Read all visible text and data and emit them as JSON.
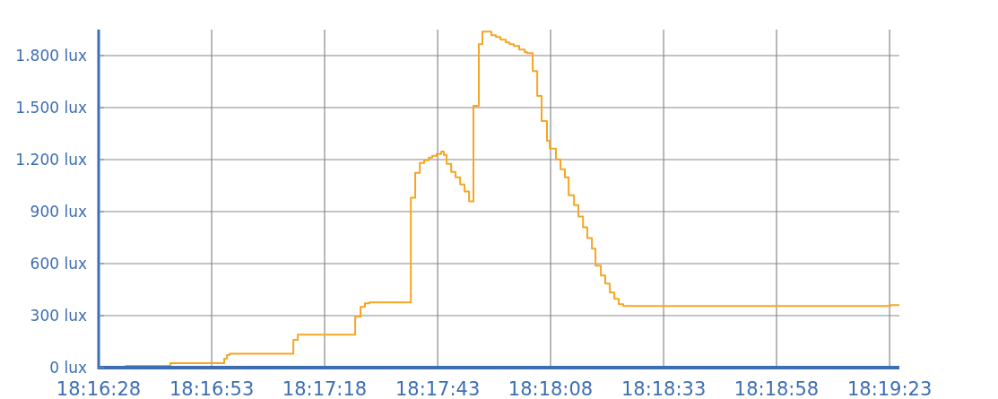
{
  "chart_data": {
    "type": "step",
    "x": [
      18.27461,
      18.2761,
      18.27885,
      18.28216,
      18.28233,
      18.28249,
      18.28641,
      18.28668,
      18.29021,
      18.29054,
      18.29081,
      18.29109,
      18.29363,
      18.2939,
      18.29418,
      18.29445,
      18.29473,
      18.29495,
      18.29522,
      18.2955,
      18.29566,
      18.29583,
      18.29611,
      18.29638,
      18.29666,
      18.29693,
      18.29721,
      18.29748,
      18.29781,
      18.29803,
      18.29858,
      18.29886,
      18.29914,
      18.29947,
      18.29969,
      18.29996,
      18.30029,
      18.30063,
      18.30079,
      18.30112,
      18.3014,
      18.30167,
      18.302,
      18.30217,
      18.30255,
      18.30283,
      18.3031,
      18.30333,
      18.30366,
      18.30393,
      18.30421,
      18.30448,
      18.30476,
      18.30498,
      18.30531,
      18.30558,
      18.30586,
      18.30614,
      18.30641,
      18.30669,
      18.32311,
      18.32366
    ],
    "series": [
      {
        "color": "#f5a623",
        "values": [
          0,
          10,
          26,
          52,
          72,
          80,
          160,
          190,
          294,
          350,
          371,
          376,
          980,
          1124,
          1180,
          1196,
          1211,
          1222,
          1232,
          1247,
          1227,
          1175,
          1129,
          1098,
          1057,
          1016,
          959,
          1510,
          1866,
          1938,
          1918,
          1907,
          1892,
          1876,
          1866,
          1856,
          1835,
          1820,
          1814,
          1711,
          1567,
          1423,
          1309,
          1263,
          1201,
          1144,
          1098,
          995,
          938,
          871,
          809,
          747,
          686,
          588,
          531,
          485,
          433,
          397,
          366,
          356,
          361,
          361
        ]
      }
    ],
    "xlim": [
      18.27444,
      18.32366
    ],
    "xticks": [
      {
        "value": 18.27444,
        "label": "18:16:28"
      },
      {
        "value": 18.28139,
        "label": "18:16:53"
      },
      {
        "value": 18.28833,
        "label": "18:17:18"
      },
      {
        "value": 18.29528,
        "label": "18:17:43"
      },
      {
        "value": 18.30222,
        "label": "18:18:08"
      },
      {
        "value": 18.30917,
        "label": "18:18:33"
      },
      {
        "value": 18.31611,
        "label": "18:18:58"
      },
      {
        "value": 18.32306,
        "label": "18:19:23"
      }
    ],
    "ylim": [
      0,
      1950
    ],
    "yticks": [
      {
        "value": 0,
        "label": "0 lux"
      },
      {
        "value": 300,
        "label": "300 lux"
      },
      {
        "value": 600,
        "label": "600 lux"
      },
      {
        "value": 900,
        "label": "900 lux"
      },
      {
        "value": 1200,
        "label": "1.200 lux"
      },
      {
        "value": 1500,
        "label": "1.500 lux"
      },
      {
        "value": 1800,
        "label": "1.800 lux"
      }
    ],
    "grid": true
  }
}
